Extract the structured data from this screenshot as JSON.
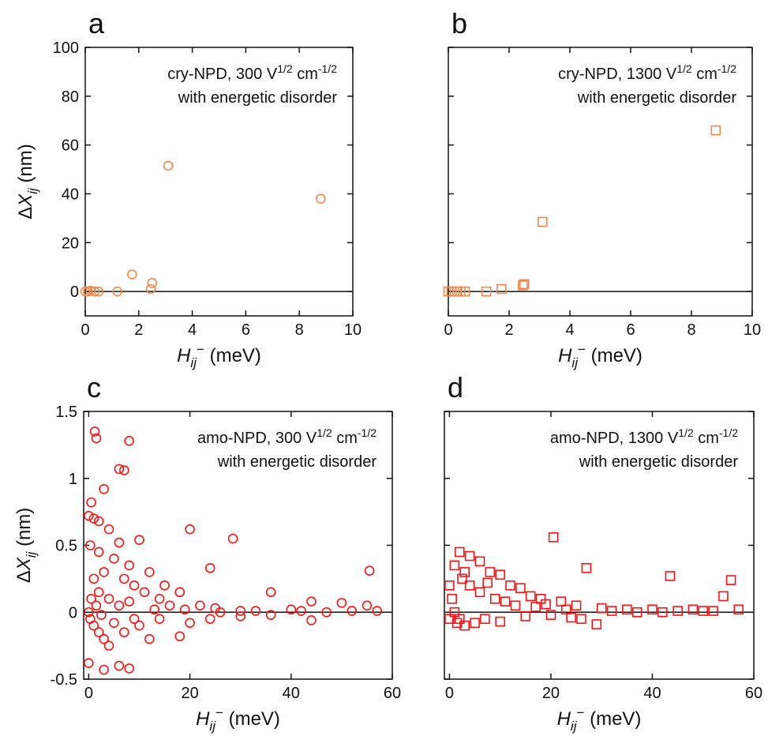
{
  "chart_data": [
    {
      "type": "scatter",
      "panel_label": "a",
      "annotation": [
        [
          "cry-NPD, 300 V",
          "1/2",
          " cm",
          "-1/2"
        ],
        [
          "with energetic disorder"
        ]
      ],
      "ylabel": [
        "Δ",
        "X",
        "ij",
        " (nm)"
      ],
      "xlabel": [
        "H",
        "ij",
        "−",
        " (meV)"
      ],
      "xlim": [
        0,
        10
      ],
      "ylim": [
        -10,
        100
      ],
      "xticks": [
        0,
        2,
        4,
        6,
        8,
        10
      ],
      "yticks": [
        0,
        20,
        40,
        60,
        80,
        100
      ],
      "ytick_labels": true,
      "zero_line": true,
      "marker": "circle",
      "color": "#f0884a",
      "x": [
        0,
        0.1,
        0.2,
        0.35,
        0.5,
        1.2,
        1.75,
        2.45,
        2.5,
        3.1,
        8.8
      ],
      "y": [
        0,
        0,
        0.3,
        0,
        0,
        0,
        7,
        1,
        3.5,
        51.5,
        38
      ]
    },
    {
      "type": "scatter",
      "panel_label": "b",
      "annotation": [
        [
          "cry-NPD, 1300 V",
          "1/2",
          " cm",
          "-1/2"
        ],
        [
          "with energetic disorder"
        ]
      ],
      "xlabel": [
        "H",
        "ij",
        "−",
        " (meV)"
      ],
      "xlim": [
        0,
        10
      ],
      "ylim": [
        -10,
        100
      ],
      "xticks": [
        0,
        2,
        4,
        6,
        8,
        10
      ],
      "yticks": [
        0,
        20,
        40,
        60,
        80,
        100
      ],
      "ytick_labels": false,
      "zero_line": true,
      "marker": "square",
      "color": "#f0884a",
      "x": [
        0,
        0.1,
        0.2,
        0.3,
        0.4,
        0.55,
        1.25,
        1.75,
        2.45,
        2.5,
        3.1,
        8.8
      ],
      "y": [
        0,
        0,
        0,
        0,
        0,
        0,
        0,
        1,
        2.5,
        3,
        28.5,
        66
      ]
    },
    {
      "type": "scatter",
      "panel_label": "c",
      "annotation": [
        [
          "amo-NPD, 300 V",
          "1/2",
          " cm",
          "-1/2"
        ],
        [
          "with energetic disorder"
        ]
      ],
      "ylabel": [
        "Δ",
        "X",
        "ij",
        " (nm)"
      ],
      "xlabel": [
        "H",
        "ij",
        "−",
        " (meV)"
      ],
      "xlim": [
        -1,
        60
      ],
      "ylim": [
        -0.5,
        1.5
      ],
      "xticks": [
        0,
        20,
        40,
        60
      ],
      "yticks": [
        -0.5,
        0,
        0.5,
        1,
        1.5
      ],
      "ytick_labels": true,
      "zero_line": true,
      "marker": "circle",
      "color": "#ff1010",
      "x": [
        1.2,
        1.5,
        8,
        6,
        7,
        3,
        0.5,
        0,
        1,
        2,
        4,
        20,
        28.5,
        10,
        6,
        24,
        55.5,
        0.3,
        2,
        5,
        8,
        12,
        15,
        18,
        36,
        44,
        50,
        55,
        57,
        52,
        40,
        30,
        25,
        22,
        19,
        16,
        14,
        11,
        9,
        7,
        3,
        1,
        0.5,
        2,
        4,
        6,
        0,
        0.3,
        1,
        2,
        3,
        4,
        3,
        6,
        8,
        0,
        7,
        10,
        12,
        18,
        20,
        24,
        30,
        44,
        36,
        14,
        5,
        9,
        1.5,
        2.5,
        8,
        13,
        26,
        33,
        47,
        42
      ],
      "y": [
        1.35,
        1.3,
        1.28,
        1.07,
        1.06,
        0.92,
        0.82,
        0.72,
        0.7,
        0.68,
        0.62,
        0.62,
        0.55,
        0.54,
        0.52,
        0.33,
        0.31,
        0.5,
        0.45,
        0.4,
        0.35,
        0.3,
        0.2,
        0.15,
        0.15,
        0.08,
        0.07,
        0.05,
        0.01,
        0.01,
        0.02,
        0.01,
        0.03,
        0.05,
        0.02,
        0.05,
        0.1,
        0.15,
        0.2,
        0.25,
        0.3,
        0.25,
        0.1,
        0.15,
        0.1,
        0.05,
        0,
        -0.05,
        -0.1,
        -0.15,
        -0.2,
        -0.25,
        -0.43,
        -0.4,
        -0.42,
        -0.38,
        -0.15,
        -0.1,
        -0.2,
        -0.18,
        -0.08,
        -0.05,
        -0.03,
        -0.06,
        -0.02,
        -0.05,
        -0.08,
        -0.05,
        0.05,
        -0.02,
        0.08,
        0.02,
        0,
        0.01,
        0,
        0.01
      ]
    },
    {
      "type": "scatter",
      "panel_label": "d",
      "annotation": [
        [
          "amo-NPD, 1300 V",
          "1/2",
          " cm",
          "-1/2"
        ],
        [
          "with energetic disorder"
        ]
      ],
      "xlabel": [
        "H",
        "ij",
        "−",
        " (meV)"
      ],
      "xlim": [
        -1,
        60
      ],
      "ylim": [
        -0.5,
        1.5
      ],
      "xticks": [
        0,
        20,
        40,
        60
      ],
      "yticks": [
        -0.5,
        0,
        0.5,
        1,
        1.5
      ],
      "ytick_labels": false,
      "zero_line": true,
      "marker": "square",
      "color": "#ff1010",
      "x": [
        20.5,
        43.5,
        55.5,
        27,
        54,
        2,
        4,
        1,
        6,
        8,
        3,
        10,
        12,
        14,
        16,
        18,
        22,
        25,
        30,
        35,
        40,
        45,
        50,
        57,
        0,
        0.5,
        1,
        2,
        3,
        5,
        0,
        7,
        10,
        13,
        15,
        17,
        20,
        23,
        26,
        29,
        32,
        37,
        42,
        48,
        52,
        6,
        9,
        11,
        4,
        2.5,
        7.5,
        1.5,
        19,
        24
      ],
      "y": [
        0.56,
        0.27,
        0.24,
        0.33,
        0.12,
        0.45,
        0.42,
        0.35,
        0.38,
        0.3,
        0.3,
        0.28,
        0.2,
        0.18,
        0.12,
        0.1,
        0.08,
        0.05,
        0.03,
        0.02,
        0.02,
        0.01,
        0.01,
        0.02,
        0.2,
        0.1,
        0,
        -0.05,
        -0.1,
        -0.08,
        -0.05,
        -0.05,
        -0.07,
        0.05,
        -0.03,
        0.04,
        -0.02,
        0.02,
        -0.05,
        -0.09,
        0.01,
        0,
        0,
        0.02,
        0.01,
        0.15,
        0.1,
        0.08,
        0.2,
        0.25,
        0.22,
        -0.08,
        0.06,
        -0.04
      ]
    }
  ]
}
